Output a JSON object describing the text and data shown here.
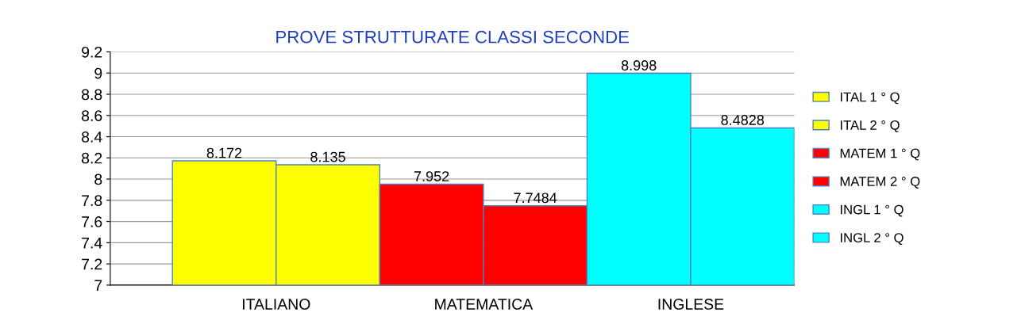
{
  "chart_data": {
    "type": "bar",
    "title": "PROVE STRUTTURATE CLASSI SECONDE",
    "categories": [
      "ITALIANO",
      "MATEMATICA",
      "INGLESE"
    ],
    "series": [
      {
        "name": "ITAL 1 ° Q",
        "color": "#ffff00",
        "values": [
          8.172,
          null,
          null
        ]
      },
      {
        "name": "ITAL 2 ° Q",
        "color": "#ffff00",
        "values": [
          8.135,
          null,
          null
        ]
      },
      {
        "name": "MATEM 1 ° Q",
        "color": "#ff0000",
        "values": [
          null,
          7.952,
          null
        ]
      },
      {
        "name": "MATEM 2 ° Q",
        "color": "#ff0000",
        "values": [
          null,
          7.7484,
          null
        ]
      },
      {
        "name": "INGL 1 ° Q",
        "color": "#00ffff",
        "values": [
          null,
          null,
          8.998
        ]
      },
      {
        "name": "INGL 2 ° Q",
        "color": "#00ffff",
        "values": [
          null,
          null,
          8.4828
        ]
      }
    ],
    "ylim": [
      7,
      9.2
    ],
    "yticks": [
      7,
      7.2,
      7.4,
      7.6,
      7.8,
      8,
      8.2,
      8.4,
      8.6,
      8.8,
      9,
      9.2
    ],
    "grid": "y",
    "legend": "right",
    "data_labels": true
  }
}
